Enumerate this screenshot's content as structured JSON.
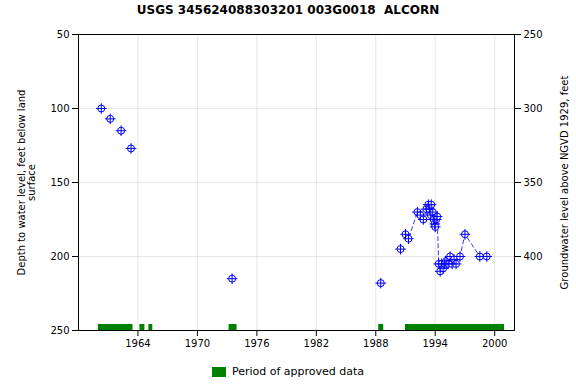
{
  "chart_data": {
    "type": "scatter",
    "title": "USGS 345624088303201 003G0018  ALCORN",
    "ylabel": "Depth to water level, feet below land\nsurface",
    "y2label": "Groundwater level above NGVD 1929, feet",
    "xlim": [
      1958,
      2002
    ],
    "xticks": [
      1964,
      1970,
      1976,
      1982,
      1988,
      1994,
      2000
    ],
    "ylim": [
      250,
      50
    ],
    "yticks": [
      50,
      100,
      150,
      200,
      250
    ],
    "y2lim": [
      450,
      250
    ],
    "y2ticks": [
      400,
      350,
      300,
      250
    ],
    "grid": true,
    "legend": "bottom",
    "series": [
      {
        "type": "line",
        "line_style": "dashed",
        "color": "#0000ff",
        "x": [
          1991.0,
          1991.3,
          1992.2,
          1992.5,
          1992.8,
          1993.1,
          1993.3,
          1993.4,
          1993.55,
          1993.6,
          1993.75,
          1993.85,
          1993.95,
          1994.0,
          1994.1,
          1994.2,
          1994.35,
          1994.5,
          1994.65,
          1994.8,
          1994.95,
          1995.1,
          1995.3,
          1995.5,
          1995.7,
          1995.9,
          1996.1,
          1996.5,
          1997.0,
          1998.5,
          1999.2
        ],
        "values": [
          185,
          188,
          170,
          172,
          175,
          168,
          165,
          168,
          172,
          165,
          170,
          175,
          178,
          180,
          175,
          173,
          205,
          210,
          205,
          208,
          205,
          203,
          205,
          200,
          205,
          202,
          205,
          200,
          185,
          200,
          200
        ]
      },
      {
        "type": "scatter",
        "marker": "circle_plus",
        "color": "#0000ff",
        "x": [
          1960.3,
          1961.2,
          1962.3,
          1963.3,
          1973.5,
          1988.5,
          1990.5,
          1991.0,
          1991.3,
          1992.2,
          1992.5,
          1992.8,
          1993.1,
          1993.3,
          1993.4,
          1993.55,
          1993.6,
          1993.75,
          1993.85,
          1993.95,
          1994.0,
          1994.1,
          1994.2,
          1994.35,
          1994.5,
          1994.65,
          1994.8,
          1994.95,
          1995.1,
          1995.3,
          1995.5,
          1995.7,
          1995.9,
          1996.1,
          1996.5,
          1997.0,
          1998.5,
          1999.2
        ],
        "values": [
          100,
          107,
          115,
          127,
          215,
          218,
          195,
          185,
          188,
          170,
          172,
          175,
          168,
          165,
          168,
          172,
          165,
          170,
          175,
          178,
          180,
          175,
          173,
          205,
          210,
          205,
          208,
          205,
          203,
          205,
          200,
          205,
          202,
          205,
          200,
          185,
          200,
          200
        ]
      },
      {
        "type": "bar",
        "name": "Period of approved data",
        "color": "#008000",
        "y": 250,
        "segments": [
          [
            1960.0,
            1963.5
          ],
          [
            1964.2,
            1964.7
          ],
          [
            1965.1,
            1965.5
          ],
          [
            1973.2,
            1974.0
          ],
          [
            1988.3,
            1988.8
          ],
          [
            1991.0,
            2001.0
          ]
        ]
      }
    ]
  }
}
